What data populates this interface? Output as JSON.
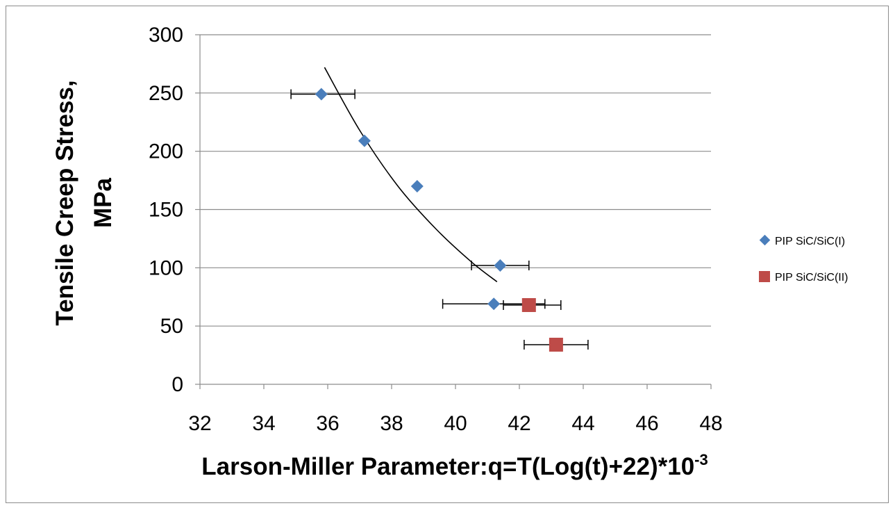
{
  "chart_data": {
    "type": "scatter",
    "title": "",
    "xlabel": "Larson-Miller Parameter:q=T(Log(t)+22)*10",
    "xlabel_superscript": "-3",
    "ylabel_line1": "Tensile Creep Stress,",
    "ylabel_line2": "MPa",
    "xlim": [
      32,
      48
    ],
    "ylim": [
      0,
      300
    ],
    "x_ticks": [
      32,
      34,
      36,
      38,
      40,
      42,
      44,
      46,
      48
    ],
    "y_ticks": [
      0,
      50,
      100,
      150,
      200,
      250,
      300
    ],
    "grid": "horizontal",
    "legend_position": "right",
    "series": [
      {
        "name": "PIP SiC/SiC(I)",
        "marker": "diamond",
        "color": "#4a7ebb",
        "points": [
          {
            "x": 35.8,
            "y": 249,
            "xerr": [
              34.85,
              36.85
            ]
          },
          {
            "x": 37.15,
            "y": 209
          },
          {
            "x": 38.8,
            "y": 170
          },
          {
            "x": 41.4,
            "y": 102,
            "xerr": [
              40.5,
              42.3
            ]
          },
          {
            "x": 41.2,
            "y": 69,
            "xerr": [
              39.6,
              42.8
            ]
          }
        ]
      },
      {
        "name": "PIP SiC/SiC(II)",
        "marker": "square",
        "color": "#be4b48",
        "points": [
          {
            "x": 42.3,
            "y": 68,
            "xerr": [
              41.5,
              43.3
            ]
          },
          {
            "x": 43.15,
            "y": 34,
            "xerr": [
              42.15,
              44.15
            ]
          }
        ]
      }
    ],
    "trendline": {
      "color": "#000000",
      "points": [
        [
          35.9,
          272
        ],
        [
          37.0,
          218
        ],
        [
          38.2,
          170
        ],
        [
          39.4,
          133
        ],
        [
          40.5,
          105
        ],
        [
          41.3,
          88
        ]
      ]
    }
  }
}
